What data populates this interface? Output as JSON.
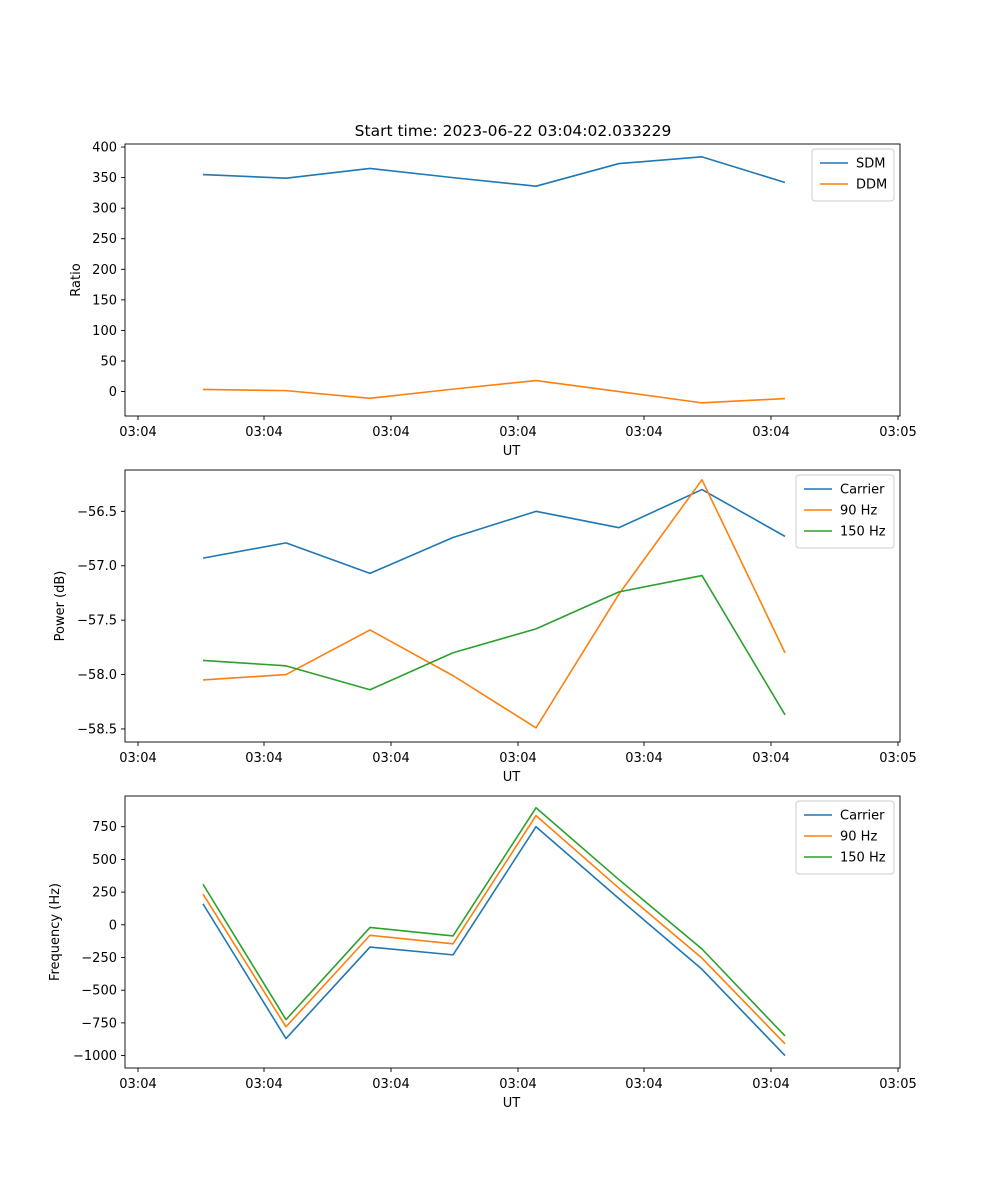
{
  "figure_title": "Start time: 2023-06-22 03:04:02.033229",
  "chart_data": [
    {
      "type": "line",
      "title": "Start time: 2023-06-22 03:04:02.033229",
      "xlabel": "UT",
      "ylabel": "Ratio",
      "x_tick_labels": [
        "03:04",
        "03:04",
        "03:04",
        "03:04",
        "03:04",
        "03:04",
        "03:05"
      ],
      "y_ticks": [
        0,
        50,
        100,
        150,
        200,
        250,
        300,
        350,
        400
      ],
      "ylim": [
        -40,
        405
      ],
      "grid": false,
      "legend": "top-right",
      "series": [
        {
          "name": "SDM",
          "color": "#1f77b4",
          "values": [
            355,
            349,
            365,
            350,
            336,
            373,
            384,
            342
          ]
        },
        {
          "name": "DDM",
          "color": "#ff7f0e",
          "values": [
            3.5,
            1.5,
            -11,
            4,
            18,
            0,
            -18.5,
            -11.5
          ]
        }
      ]
    },
    {
      "type": "line",
      "title": "",
      "xlabel": "UT",
      "ylabel": "Power (dB)",
      "x_tick_labels": [
        "03:04",
        "03:04",
        "03:04",
        "03:04",
        "03:04",
        "03:04",
        "03:05"
      ],
      "y_ticks": [
        -58.5,
        -58.0,
        -57.5,
        -57.0,
        -56.5
      ],
      "y_tick_labels": [
        "−58.5",
        "−58.0",
        "−57.5",
        "−57.0",
        "−56.5"
      ],
      "ylim": [
        -58.62,
        -56.12
      ],
      "grid": false,
      "legend": "top-right",
      "series": [
        {
          "name": "Carrier",
          "color": "#1f77b4",
          "values": [
            -56.93,
            -56.79,
            -57.07,
            -56.74,
            -56.5,
            -56.65,
            -56.3,
            -56.73
          ]
        },
        {
          "name": "90 Hz",
          "color": "#ff7f0e",
          "values": [
            -58.05,
            -58.0,
            -57.59,
            -58.01,
            -58.49,
            -57.26,
            -56.21,
            -57.8
          ]
        },
        {
          "name": "150 Hz",
          "color": "#2ca02c",
          "values": [
            -57.87,
            -57.92,
            -58.14,
            -57.8,
            -57.58,
            -57.24,
            -57.09,
            -58.37
          ]
        }
      ]
    },
    {
      "type": "line",
      "title": "",
      "xlabel": "UT",
      "ylabel": "Frequency (Hz)",
      "x_tick_labels": [
        "03:04",
        "03:04",
        "03:04",
        "03:04",
        "03:04",
        "03:04",
        "03:05"
      ],
      "y_ticks": [
        -1000,
        -750,
        -500,
        -250,
        0,
        250,
        500,
        750
      ],
      "y_tick_labels": [
        "−1000",
        "−750",
        "−500",
        "−250",
        "0",
        "250",
        "500",
        "750"
      ],
      "ylim": [
        -1095,
        985
      ],
      "grid": false,
      "legend": "top-right",
      "series": [
        {
          "name": "Carrier",
          "color": "#1f77b4",
          "values": [
            160,
            -870,
            -170,
            -230,
            750,
            200,
            -340,
            -1000
          ]
        },
        {
          "name": "90 Hz",
          "color": "#ff7f0e",
          "values": [
            235,
            -780,
            -80,
            -145,
            835,
            280,
            -255,
            -910
          ]
        },
        {
          "name": "150 Hz",
          "color": "#2ca02c",
          "values": [
            310,
            -725,
            -20,
            -85,
            895,
            345,
            -185,
            -850
          ]
        }
      ]
    }
  ]
}
